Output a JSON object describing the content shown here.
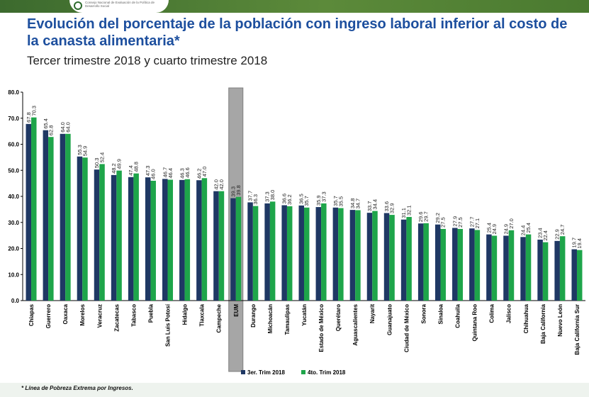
{
  "header": {
    "logo_text": "Consejo Nacional de Evaluación de la Política de Desarrollo Social"
  },
  "title": "Evolución del porcentaje de la población con ingreso laboral inferior al costo de la canasta alimentaria*",
  "subtitle": "Tercer trimestre 2018 y cuarto trimestre 2018",
  "footnote": "* Línea de Pobreza Extrema por Ingresos.",
  "colors": {
    "series1": "#1f3864",
    "series2": "#1ea54a",
    "highlight": "#a6a6a6",
    "title": "#1d4f9e"
  },
  "chart_data": {
    "type": "bar",
    "ylim": [
      0,
      80
    ],
    "yticks": [
      "0.0",
      "10.0",
      "20.0",
      "30.0",
      "40.0",
      "50.0",
      "60.0",
      "70.0",
      "80.0"
    ],
    "grid": false,
    "legend_position": "bottom",
    "highlighted_category": "EUM",
    "categories": [
      "Chiapas",
      "Guerrero",
      "Oaxaca",
      "Morelos",
      "Veracruz",
      "Zacatecas",
      "Tabasco",
      "Puebla",
      "San Luis Potosí",
      "Hidalgo",
      "Tlaxcala",
      "Campeche",
      "EUM",
      "Durango",
      "Michoacán",
      "Tamaulipas",
      "Yucatán",
      "Estado de México",
      "Querétaro",
      "Aguascalientes",
      "Nayarit",
      "Guanajuato",
      "Ciudad de México",
      "Sonora",
      "Sinaloa",
      "Coahuila",
      "Quintana Roo",
      "Colima",
      "Jalisco",
      "Chihuahua",
      "Baja California",
      "Nuevo León",
      "Baja California Sur"
    ],
    "series": [
      {
        "name": "3er. Trim 2018",
        "values": [
          67.8,
          65.4,
          64.0,
          55.3,
          50.3,
          48.2,
          47.4,
          47.3,
          46.7,
          46.3,
          46.2,
          42.0,
          39.3,
          37.7,
          37.3,
          36.6,
          36.5,
          35.9,
          35.7,
          34.8,
          33.7,
          33.6,
          31.1,
          29.6,
          29.2,
          27.9,
          27.7,
          25.4,
          24.9,
          24.4,
          23.4,
          22.9,
          19.7
        ]
      },
      {
        "name": "4to. Trim 2018",
        "values": [
          70.3,
          62.8,
          64.0,
          54.9,
          52.4,
          49.9,
          48.8,
          46.0,
          46.4,
          46.6,
          47.0,
          42.0,
          39.8,
          36.3,
          38.0,
          36.2,
          35.7,
          37.3,
          35.5,
          34.7,
          34.4,
          32.9,
          32.1,
          29.7,
          27.5,
          27.5,
          27.1,
          24.9,
          27.0,
          25.4,
          22.4,
          24.7,
          19.4
        ]
      }
    ]
  }
}
